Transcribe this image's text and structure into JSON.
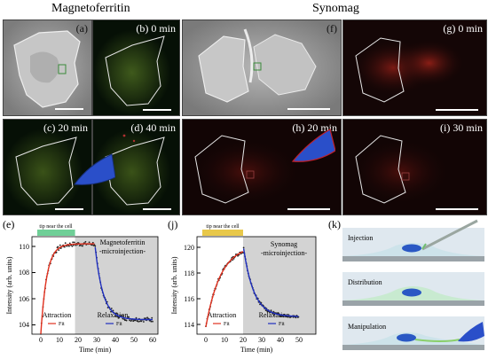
{
  "headers": {
    "left": "Magnetoferritin",
    "right": "Synomag"
  },
  "panels": {
    "a": "(a)",
    "b": "(b) 0 min",
    "c": "(c) 20 min",
    "d": "(d) 40 min",
    "f": "(f)",
    "g": "(g) 0 min",
    "h": "(h) 20 min",
    "i": "(i) 30 min"
  },
  "plot_e": {
    "label": "(e)",
    "banner": "tip near the cell",
    "title_line1": "Magnetoferritin",
    "title_line2": "-microinjection-",
    "ylabel": "Intensity (arb. units)",
    "xlabel": "Time (min)",
    "xticks": [
      "0",
      "10",
      "20",
      "30",
      "40",
      "50",
      "60"
    ],
    "yticks": [
      "104",
      "106",
      "108",
      "110"
    ],
    "attraction": "Attraction",
    "relaxation": "Relaxation",
    "legend_attr": "Fit",
    "legend_relax": "Fit"
  },
  "plot_j": {
    "label": "(j)",
    "banner": "tip near the cell",
    "title_line1": "Synomag",
    "title_line2": "-microinjection-",
    "ylabel": "Intensity (arb. units)",
    "xlabel": "Time (min)",
    "xticks": [
      "0",
      "10",
      "20",
      "30",
      "40",
      "50"
    ],
    "yticks": [
      "114",
      "116",
      "118",
      "120"
    ],
    "attraction": "Attraction",
    "relaxation": "Relaxation",
    "legend_attr": "Fit",
    "legend_relax": "Fit"
  },
  "schematic_k": {
    "label": "(k)",
    "step1": "Injection",
    "step2": "Distribution",
    "step3": "Manipulation"
  },
  "colors": {
    "fit_attraction": "#e0301e",
    "fit_relaxation": "#1f2fbf",
    "banner_e": "#6fcf97",
    "banner_j": "#e8c84a",
    "tip": "#2a4fc9",
    "shade": "#d3d3d3"
  }
}
